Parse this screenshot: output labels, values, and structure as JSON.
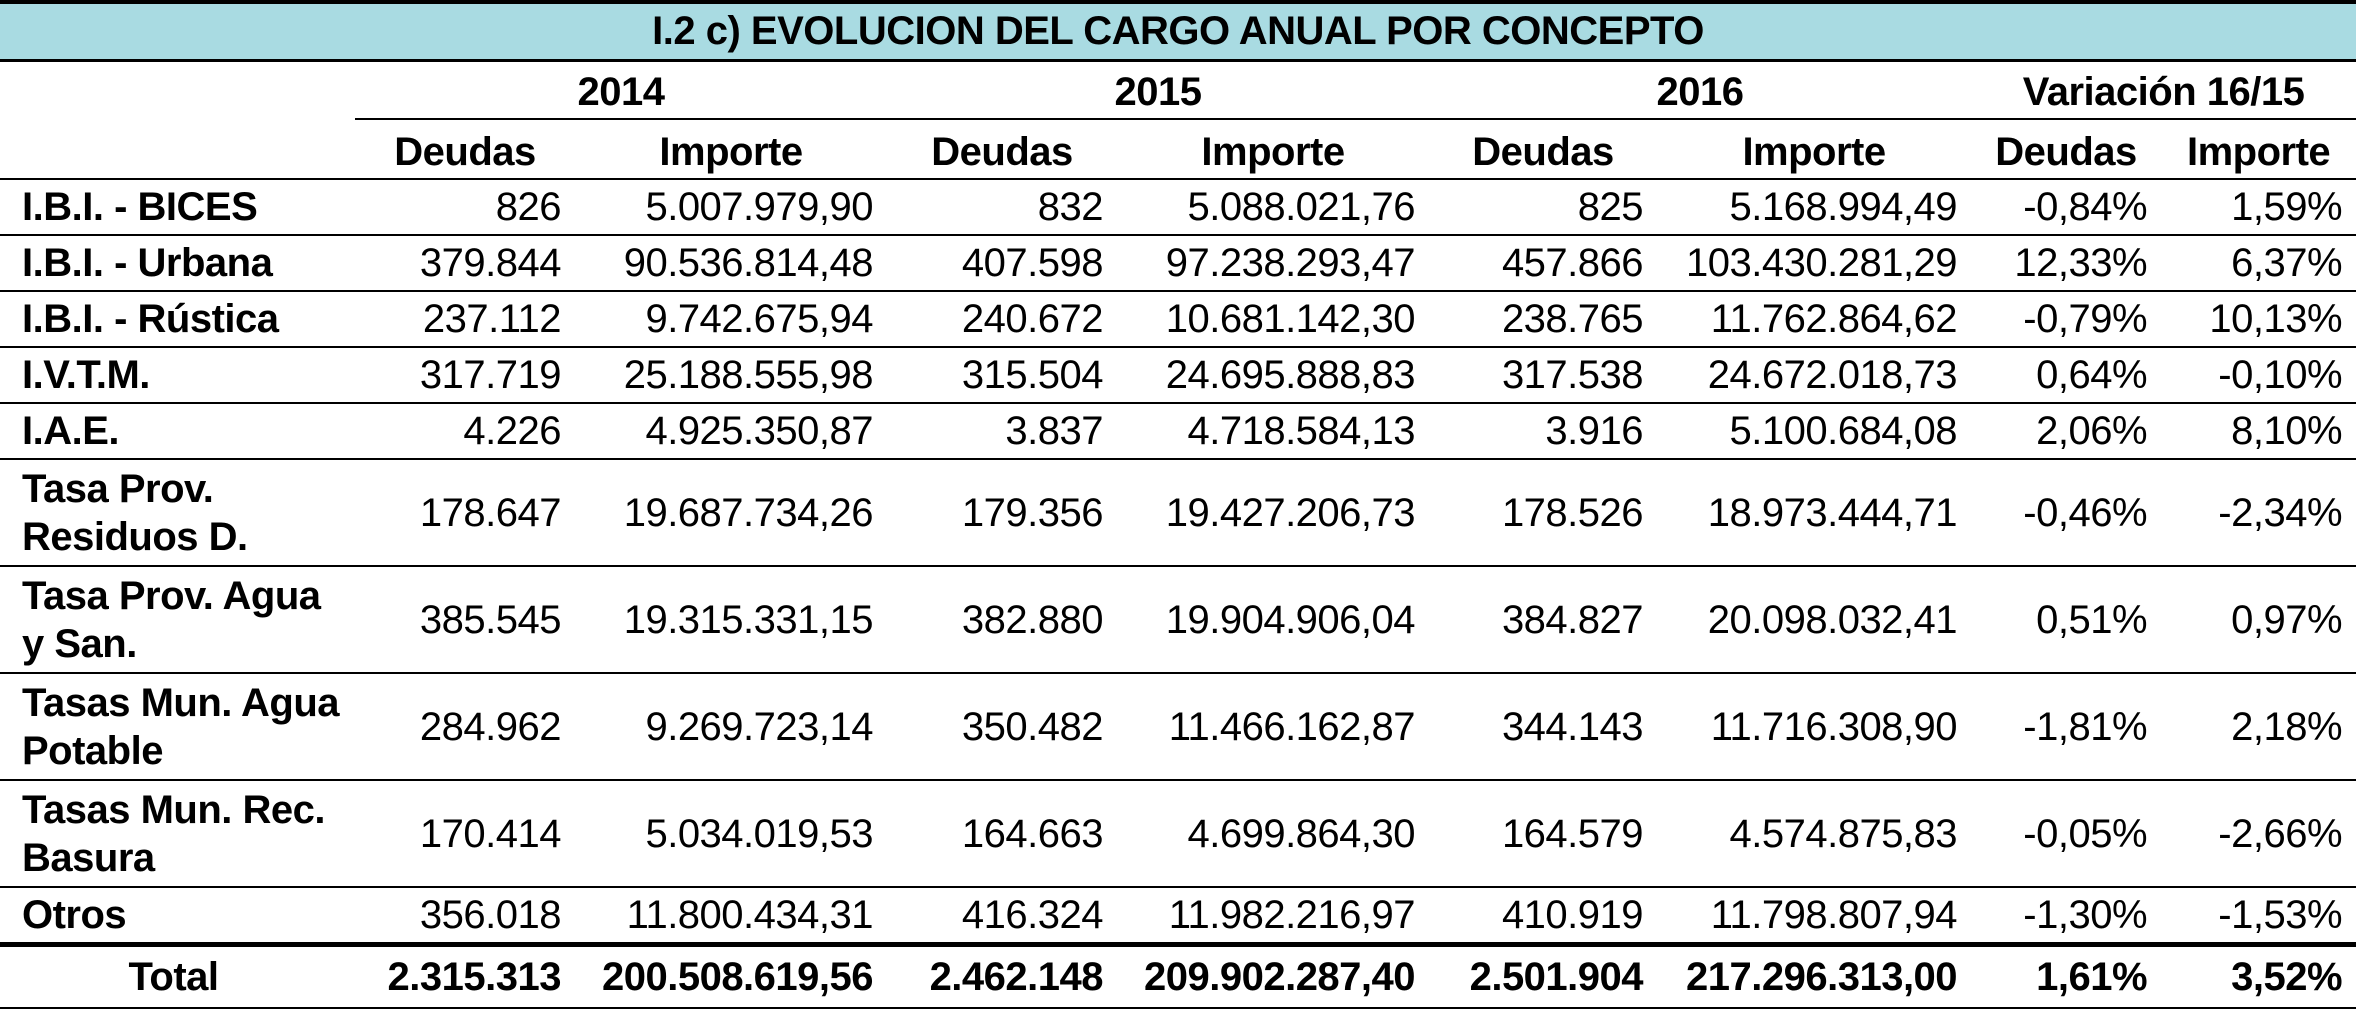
{
  "title": "I.2 c) EVOLUCION DEL CARGO ANUAL POR CONCEPTO",
  "years": [
    "2014",
    "2015",
    "2016",
    "Variación 16/15"
  ],
  "subheaders": [
    "Deudas",
    "Importe",
    "Deudas",
    "Importe",
    "Deudas",
    "Importe",
    "Deudas",
    "Importe"
  ],
  "rows": [
    {
      "label": "I.B.I. - BICES",
      "cells": [
        "826",
        "5.007.979,90",
        "832",
        "5.088.021,76",
        "825",
        "5.168.994,49",
        "-0,84%",
        "1,59%"
      ]
    },
    {
      "label": "I.B.I. - Urbana",
      "cells": [
        "379.844",
        "90.536.814,48",
        "407.598",
        "97.238.293,47",
        "457.866",
        "103.430.281,29",
        "12,33%",
        "6,37%"
      ]
    },
    {
      "label": "I.B.I. - Rústica",
      "cells": [
        "237.112",
        "9.742.675,94",
        "240.672",
        "10.681.142,30",
        "238.765",
        "11.762.864,62",
        "-0,79%",
        "10,13%"
      ]
    },
    {
      "label": "I.V.T.M.",
      "cells": [
        "317.719",
        "25.188.555,98",
        "315.504",
        "24.695.888,83",
        "317.538",
        "24.672.018,73",
        "0,64%",
        "-0,10%"
      ]
    },
    {
      "label": "I.A.E.",
      "cells": [
        "4.226",
        "4.925.350,87",
        "3.837",
        "4.718.584,13",
        "3.916",
        "5.100.684,08",
        "2,06%",
        "8,10%"
      ]
    },
    {
      "label": "Tasa Prov. Residuos D.",
      "cells": [
        "178.647",
        "19.687.734,26",
        "179.356",
        "19.427.206,73",
        "178.526",
        "18.973.444,71",
        "-0,46%",
        "-2,34%"
      ]
    },
    {
      "label": "Tasa Prov. Agua y San.",
      "cells": [
        "385.545",
        "19.315.331,15",
        "382.880",
        "19.904.906,04",
        "384.827",
        "20.098.032,41",
        "0,51%",
        "0,97%"
      ]
    },
    {
      "label": "Tasas Mun. Agua Potable",
      "cells": [
        "284.962",
        "9.269.723,14",
        "350.482",
        "11.466.162,87",
        "344.143",
        "11.716.308,90",
        "-1,81%",
        "2,18%"
      ]
    },
    {
      "label": "Tasas Mun. Rec. Basura",
      "cells": [
        "170.414",
        "5.034.019,53",
        "164.663",
        "4.699.864,30",
        "164.579",
        "4.574.875,83",
        "-0,05%",
        "-2,66%"
      ]
    },
    {
      "label": "Otros",
      "cells": [
        "356.018",
        "11.800.434,31",
        "416.324",
        "11.982.216,97",
        "410.919",
        "11.798.807,94",
        "-1,30%",
        "-1,53%"
      ]
    }
  ],
  "total": {
    "label": "Total",
    "cells": [
      "2.315.313",
      "200.508.619,56",
      "2.462.148",
      "209.902.287,40",
      "2.501.904",
      "217.296.313,00",
      "1,61%",
      "3,52%"
    ]
  }
}
